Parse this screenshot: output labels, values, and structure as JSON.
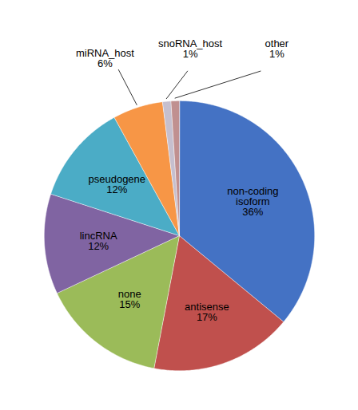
{
  "chart_data": {
    "type": "pie",
    "categories": [
      "non-coding\nisoform",
      "antisense",
      "none",
      "lincRNA",
      "pseudogene",
      "miRNA_host",
      "snoRNA_host",
      "other"
    ],
    "values": [
      36,
      17,
      15,
      12,
      12,
      6,
      1,
      1
    ],
    "value_labels": [
      "36%",
      "17%",
      "15%",
      "12%",
      "12%",
      "6%",
      "1%",
      "1%"
    ],
    "colors": [
      "#4472C4",
      "#C0504D",
      "#9BBB59",
      "#8064A2",
      "#4BACC6",
      "#F79646",
      "#C6BFCE",
      "#C09090"
    ],
    "data_labels": true
  }
}
